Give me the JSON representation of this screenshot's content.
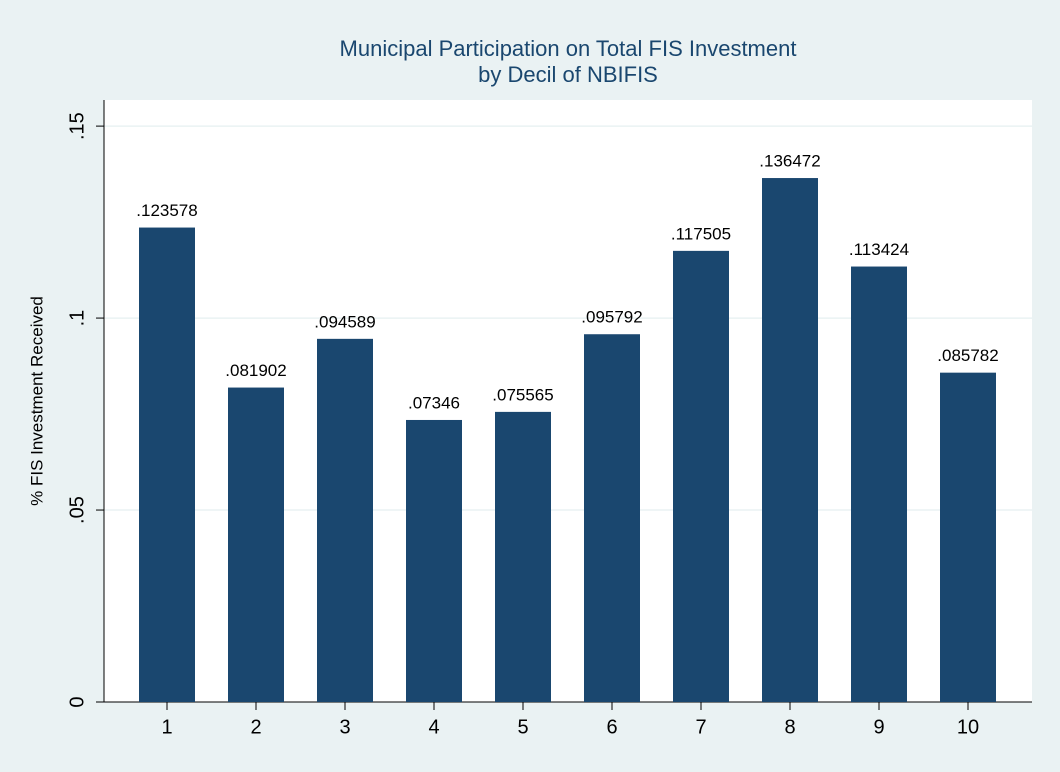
{
  "chart_data": {
    "type": "bar",
    "title": "Municipal Participation on Total FIS Investment",
    "subtitle": "by Decil of NBIFIS",
    "ylabel": "% FIS Investment Received",
    "categories": [
      "1",
      "2",
      "3",
      "4",
      "5",
      "6",
      "7",
      "8",
      "9",
      "10"
    ],
    "values": [
      0.123578,
      0.081902,
      0.094589,
      0.07346,
      0.075565,
      0.095792,
      0.117505,
      0.136472,
      0.113424,
      0.085782
    ],
    "value_labels": [
      ".123578",
      ".081902",
      ".094589",
      ".07346",
      ".075565",
      ".095792",
      ".117505",
      ".136472",
      ".113424",
      ".085782"
    ],
    "color": "#1a476f",
    "ylim": [
      0,
      0.1568
    ],
    "yticks": [
      0,
      {
        "value": 0.05,
        "label": ".05"
      },
      {
        "value": 0.1,
        "label": ".1"
      },
      {
        "value": 0.15,
        "label": ".15"
      }
    ],
    "grid": true
  }
}
